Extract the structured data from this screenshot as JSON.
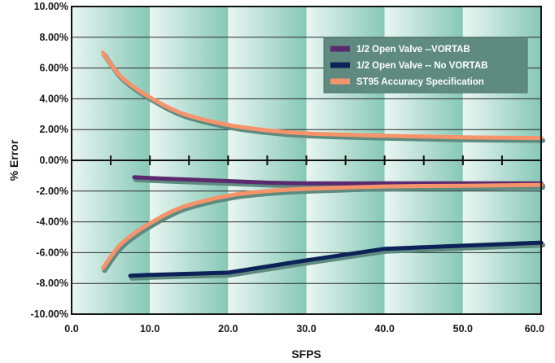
{
  "chart_data": {
    "type": "line",
    "title": "",
    "xlabel": "SFPS",
    "ylabel": "% Error",
    "xlim": [
      0,
      60
    ],
    "ylim": [
      -10,
      10
    ],
    "x_ticks": [
      "0.0",
      "10.0",
      "20.0",
      "30.0",
      "40.0",
      "50.0",
      "60.0"
    ],
    "y_ticks": [
      "10.00%",
      "8.00%",
      "6.00%",
      "4.00%",
      "2.00%",
      "0.00%",
      "-2.00%",
      "-4.00%",
      "-6.00%",
      "-8.00%",
      "-10.00%"
    ],
    "grid": true,
    "legend_position": "top-right",
    "colors": {
      "vortab": "#5b2a6e",
      "no_vortab": "#0c2258",
      "spec": "#f7936a",
      "shadow": "#5e8a80",
      "legend_bg": "#5e8a80",
      "band_light": "#e8f5f1",
      "band_dark": "#7fc3b0"
    },
    "series": [
      {
        "name": "1/2 Open Valve --VORTAB",
        "x": [
          8,
          10,
          15,
          20,
          25,
          30,
          40,
          50,
          60
        ],
        "y": [
          -1.1,
          -1.15,
          -1.25,
          -1.35,
          -1.45,
          -1.5,
          -1.5,
          -1.5,
          -1.5
        ]
      },
      {
        "name": "1/2 Open Valve -- No VORTAB",
        "x": [
          7.5,
          10,
          20,
          30,
          40,
          50,
          60
        ],
        "y": [
          -7.5,
          -7.45,
          -7.3,
          -6.5,
          -5.75,
          -5.55,
          -5.35
        ]
      },
      {
        "name": "ST95 Accuracy Specification",
        "x": [
          4,
          6,
          8,
          10,
          12.5,
          15,
          20,
          25,
          30,
          40,
          50,
          60
        ],
        "y": [
          7.0,
          5.6,
          4.75,
          4.1,
          3.4,
          2.9,
          2.3,
          1.95,
          1.75,
          1.6,
          1.5,
          1.45
        ],
        "mirror_y": [
          -7.0,
          -5.6,
          -4.75,
          -4.1,
          -3.4,
          -2.9,
          -2.3,
          -2.0,
          -1.85,
          -1.7,
          -1.65,
          -1.6
        ]
      }
    ]
  }
}
